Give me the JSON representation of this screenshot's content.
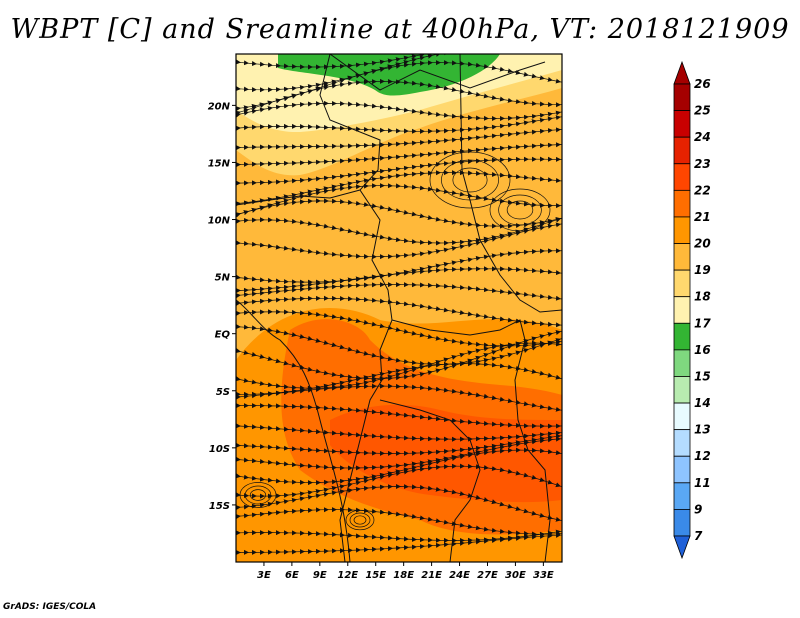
{
  "title": "WBPT [C] and Sreamline at 400hPa, VT: 2018121909",
  "credit": "GrADS: IGES/COLA",
  "map": {
    "lon_range": [
      0,
      35
    ],
    "lat_range": [
      -20,
      24.5
    ],
    "lat_ticks": [
      {
        "value": 20,
        "label": "20N"
      },
      {
        "value": 15,
        "label": "15N"
      },
      {
        "value": 10,
        "label": "10N"
      },
      {
        "value": 5,
        "label": "5N"
      },
      {
        "value": 0,
        "label": "EQ"
      },
      {
        "value": -5,
        "label": "5S"
      },
      {
        "value": -10,
        "label": "10S"
      },
      {
        "value": -15,
        "label": "15S"
      }
    ],
    "lon_ticks": [
      {
        "value": 3,
        "label": "3E"
      },
      {
        "value": 6,
        "label": "6E"
      },
      {
        "value": 9,
        "label": "9E"
      },
      {
        "value": 12,
        "label": "12E"
      },
      {
        "value": 15,
        "label": "15E"
      },
      {
        "value": 18,
        "label": "18E"
      },
      {
        "value": 21,
        "label": "21E"
      },
      {
        "value": 24,
        "label": "24E"
      },
      {
        "value": 27,
        "label": "27E"
      },
      {
        "value": 30,
        "label": "30E"
      },
      {
        "value": 33,
        "label": "33E"
      }
    ]
  },
  "colorbar": {
    "levels": [
      {
        "label": "26",
        "color": "#a50000"
      },
      {
        "label": "25",
        "color": "#c80000"
      },
      {
        "label": "24",
        "color": "#e62200"
      },
      {
        "label": "23",
        "color": "#ff4600"
      },
      {
        "label": "22",
        "color": "#ff6e00"
      },
      {
        "label": "21",
        "color": "#ff9600"
      },
      {
        "label": "20",
        "color": "#ffb93a"
      },
      {
        "label": "19",
        "color": "#ffd86e"
      },
      {
        "label": "18",
        "color": "#fff2b0"
      },
      {
        "label": "17",
        "color": "#33b533"
      },
      {
        "label": "16",
        "color": "#7fd87f"
      },
      {
        "label": "15",
        "color": "#b8ecb0"
      },
      {
        "label": "14",
        "color": "#e8fbff"
      },
      {
        "label": "13",
        "color": "#b4dcff"
      },
      {
        "label": "12",
        "color": "#8ec4ff"
      },
      {
        "label": "11",
        "color": "#5aa8f5"
      },
      {
        "label": "9",
        "color": "#3a8ae8"
      },
      {
        "label": "7",
        "color": "#1f60d8"
      }
    ],
    "bottom_color": "#1f60d8"
  }
}
